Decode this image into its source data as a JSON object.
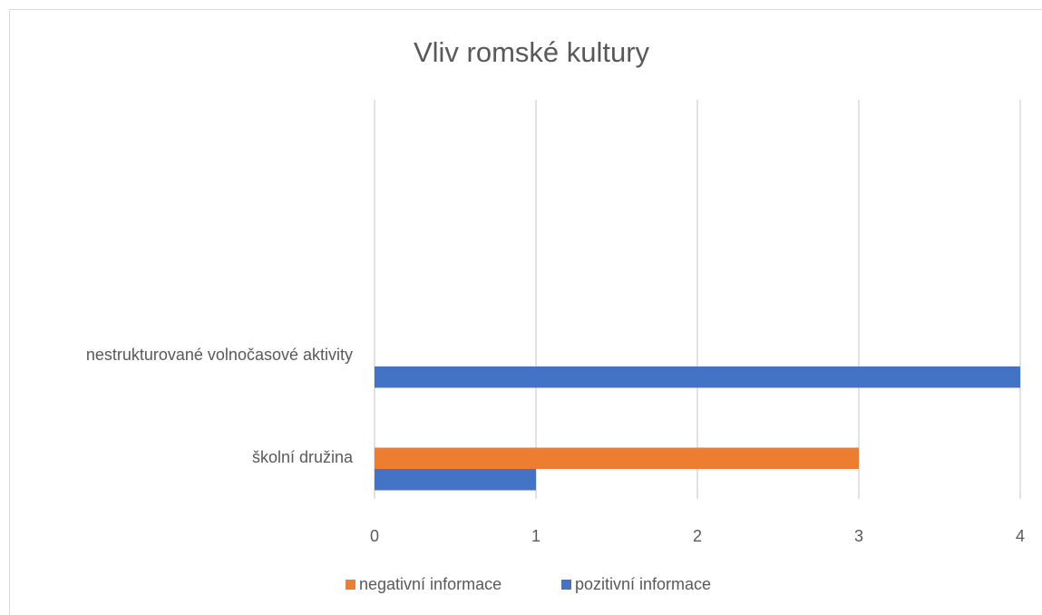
{
  "chart_data": {
    "type": "bar",
    "orientation": "horizontal",
    "title": "Vliv romské kultury",
    "categories": [
      "školní družina",
      "nestrukturované volnočasové aktivity",
      null,
      null
    ],
    "series": [
      {
        "name": "negativní informace",
        "color": "#ed7d31",
        "values": [
          3,
          0,
          null,
          null
        ]
      },
      {
        "name": "pozitivní informace",
        "color": "#4472c4",
        "values": [
          1,
          4,
          null,
          null
        ]
      }
    ],
    "xlim": [
      0,
      4
    ],
    "xticks": [
      0,
      1,
      2,
      3,
      4
    ],
    "grid": true,
    "legend": "bottom"
  }
}
